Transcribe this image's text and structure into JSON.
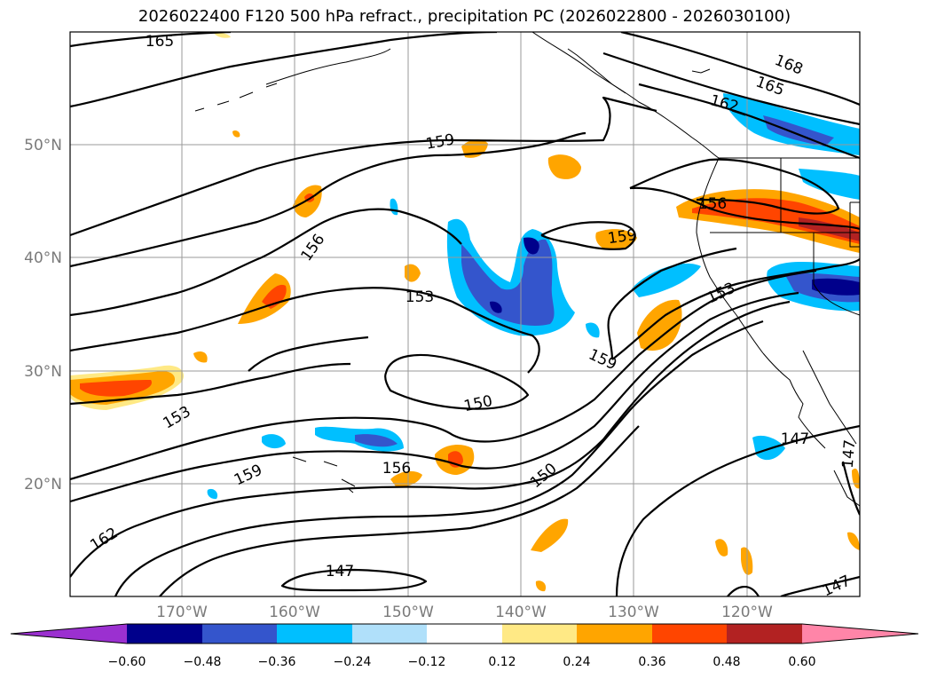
{
  "title": "2026022400 F120 500 hPa refract., precipitation PC (2026022800 - 2026030100)",
  "lat_labels": [
    "50°N",
    "40°N",
    "30°N",
    "20°N"
  ],
  "lon_labels": [
    "170°W",
    "160°W",
    "150°W",
    "140°W",
    "130°W",
    "120°W"
  ],
  "contour_labels": [
    "165",
    "168",
    "165",
    "162",
    "159",
    "156",
    "156",
    "159",
    "153",
    "153",
    "159",
    "150",
    "153",
    "159",
    "162",
    "156",
    "150",
    "147",
    "147",
    "147",
    "147"
  ],
  "colorbar": {
    "ticks": [
      "−0.60",
      "−0.48",
      "−0.36",
      "−0.24",
      "−0.12",
      "0.12",
      "0.24",
      "0.36",
      "0.48",
      "0.60"
    ],
    "colors": [
      "#9b30d0",
      "#00008b",
      "#3455cc",
      "#00bfff",
      "#b0e0fa",
      "#ffffff",
      "#ffe985",
      "#ffa500",
      "#ff4500",
      "#b22222",
      "#ff85a8"
    ]
  }
}
